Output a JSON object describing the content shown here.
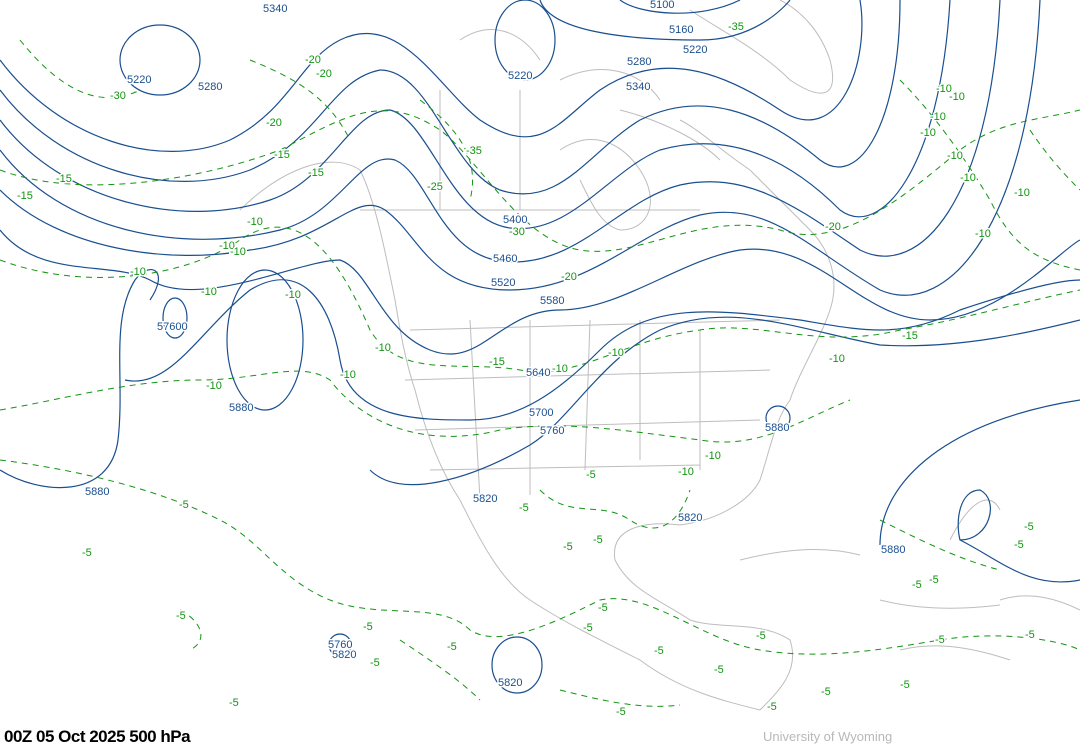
{
  "title": "00Z 05 Oct 2025  500 hPa",
  "credit": "University of Wyoming",
  "colors": {
    "height_contours": "#1a4f8f",
    "temperature_contours": "#139413",
    "coastlines": "#bdbdbd"
  },
  "height_labels": [
    "5340",
    "5100",
    "5160",
    "5220",
    "5220",
    "5220",
    "5280",
    "5280",
    "5340",
    "5400",
    "5460",
    "5520",
    "5580",
    "5640",
    "5700",
    "5760",
    "57600",
    "5880",
    "5880",
    "5880",
    "5820",
    "5820",
    "5880",
    "5820",
    "5760",
    "5820"
  ],
  "temperature_labels": [
    "-30",
    "-20",
    "-20",
    "-20",
    "-15",
    "-15",
    "-15",
    "-15",
    "-35",
    "-25",
    "-30",
    "-20",
    "-10",
    "-10",
    "-10",
    "-10",
    "-10",
    "-10",
    "-10",
    "-10",
    "-10",
    "-15",
    "-10",
    "-10",
    "-20",
    "-35",
    "-10",
    "-10",
    "-10",
    "-10",
    "-10",
    "-10",
    "-10",
    "-10",
    "-15",
    "-10",
    "-10",
    "-10",
    "-5",
    "-5",
    "-5",
    "-5",
    "-5",
    "-5",
    "-5",
    "-5",
    "-5",
    "-5",
    "-5",
    "-5",
    "-5",
    "-5",
    "-5",
    "-5",
    "-5",
    "-5",
    "-5",
    "-5",
    "-5",
    "-5",
    "-5",
    "-5",
    "-5",
    "-5"
  ]
}
